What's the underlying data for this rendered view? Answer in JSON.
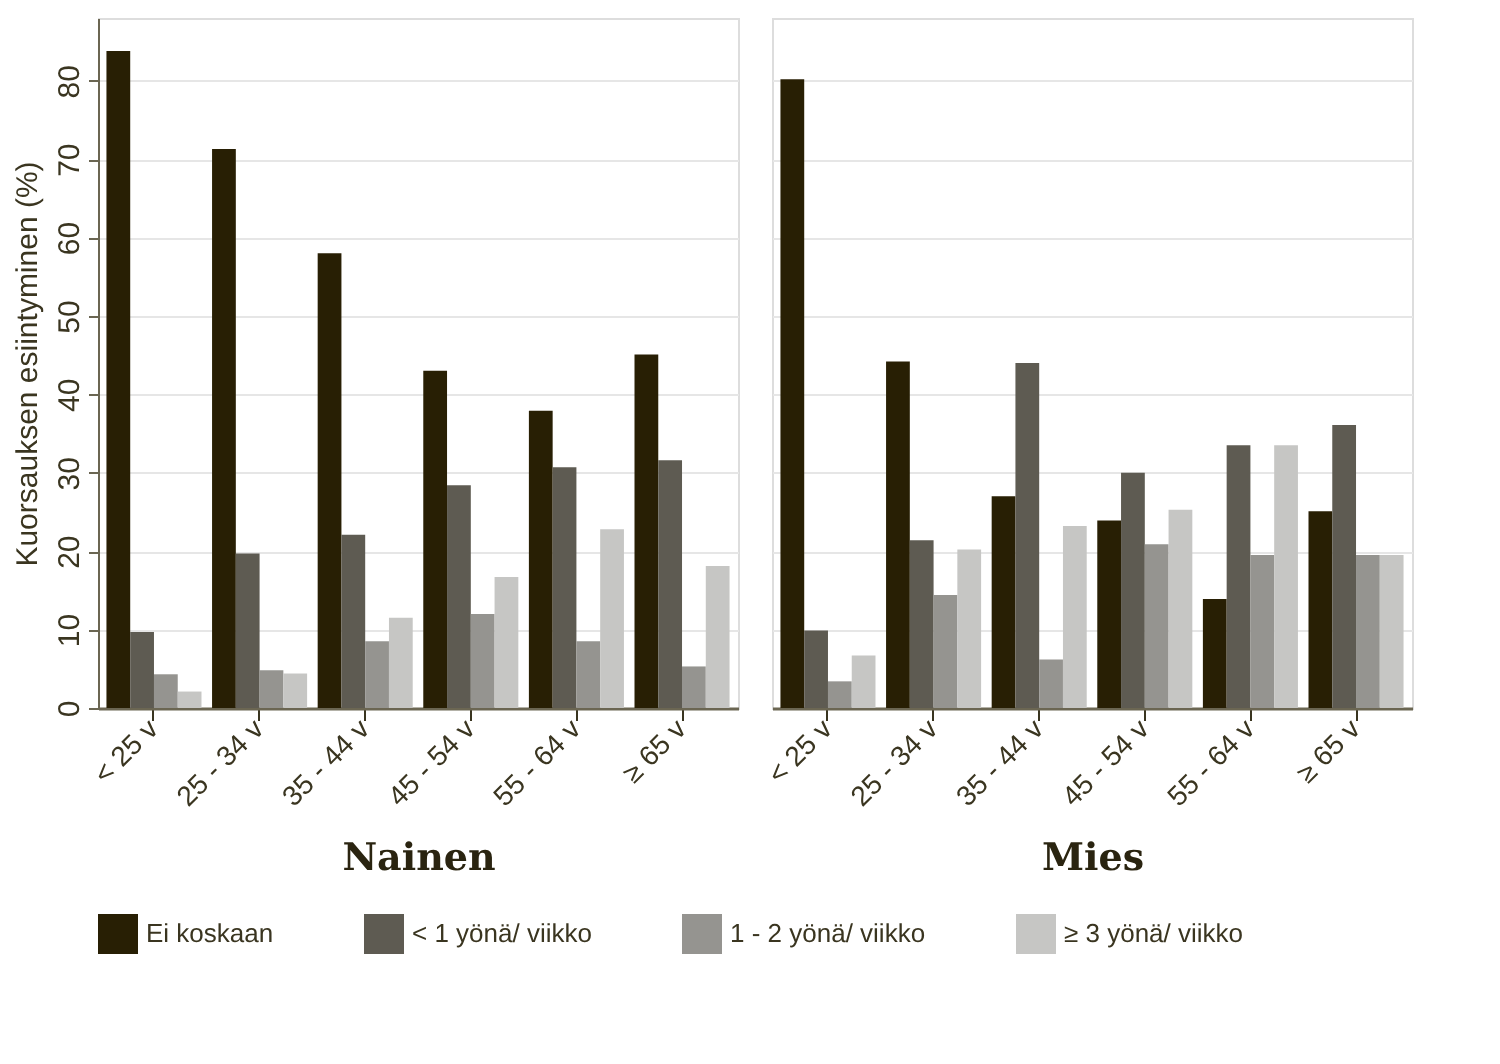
{
  "chart_data": [
    {
      "type": "bar",
      "xlabel": "Nainen",
      "ylabel": "Kuorsauksen esiintyminen (%)",
      "categories": [
        "< 25 v",
        "25 - 34 v",
        "35 - 44 v",
        "45 - 54 v",
        "55 - 64 v",
        "≥ 65 v"
      ],
      "ylim": [
        0,
        88
      ],
      "yticks": [
        0,
        10,
        20,
        30,
        40,
        50,
        60,
        70,
        80
      ],
      "grid": "y",
      "legend": "bottom",
      "series": [
        {
          "name": "Ei koskaan",
          "color": "#281f04",
          "values": [
            83.8,
            71.3,
            58.0,
            43.0,
            37.9,
            45.1
          ]
        },
        {
          "name": "< 1 yönä/ viikko",
          "color": "#5e5b52",
          "values": [
            9.7,
            19.7,
            22.1,
            28.4,
            30.7,
            31.6
          ]
        },
        {
          "name": "1 - 2 yönä/ viikko",
          "color": "#959490",
          "values": [
            4.3,
            4.8,
            8.5,
            12.0,
            8.5,
            5.3
          ]
        },
        {
          "name": "≥ 3 yönä/ viikko",
          "color": "#c6c6c4",
          "values": [
            2.1,
            4.4,
            11.5,
            16.7,
            22.8,
            18.1
          ]
        }
      ]
    },
    {
      "type": "bar",
      "xlabel": "Mies",
      "categories": [
        "< 25 v",
        "25 - 34 v",
        "35 - 44 v",
        "45 - 54 v",
        "55 - 64 v",
        "≥ 65 v"
      ],
      "ylim": [
        0,
        88
      ],
      "yticks": [
        0,
        10,
        20,
        30,
        40,
        50,
        60,
        70,
        80
      ],
      "grid": "y",
      "legend": "bottom",
      "tick_labels": "x",
      "series": [
        {
          "name": "Ei koskaan",
          "color": "#281f04",
          "values": [
            80.2,
            44.2,
            27.0,
            23.9,
            13.9,
            25.1
          ]
        },
        {
          "name": "< 1 yönä/ viikko",
          "color": "#5e5b52",
          "values": [
            9.9,
            21.4,
            44.0,
            30.0,
            33.5,
            36.1
          ]
        },
        {
          "name": "1 - 2 yönä/ viikko",
          "color": "#959490",
          "values": [
            3.4,
            14.4,
            6.2,
            20.9,
            19.5,
            19.5
          ]
        },
        {
          "name": "≥ 3 yönä/ viikko",
          "color": "#c6c6c4",
          "values": [
            6.7,
            20.2,
            23.2,
            25.3,
            33.5,
            19.5
          ]
        }
      ]
    }
  ]
}
